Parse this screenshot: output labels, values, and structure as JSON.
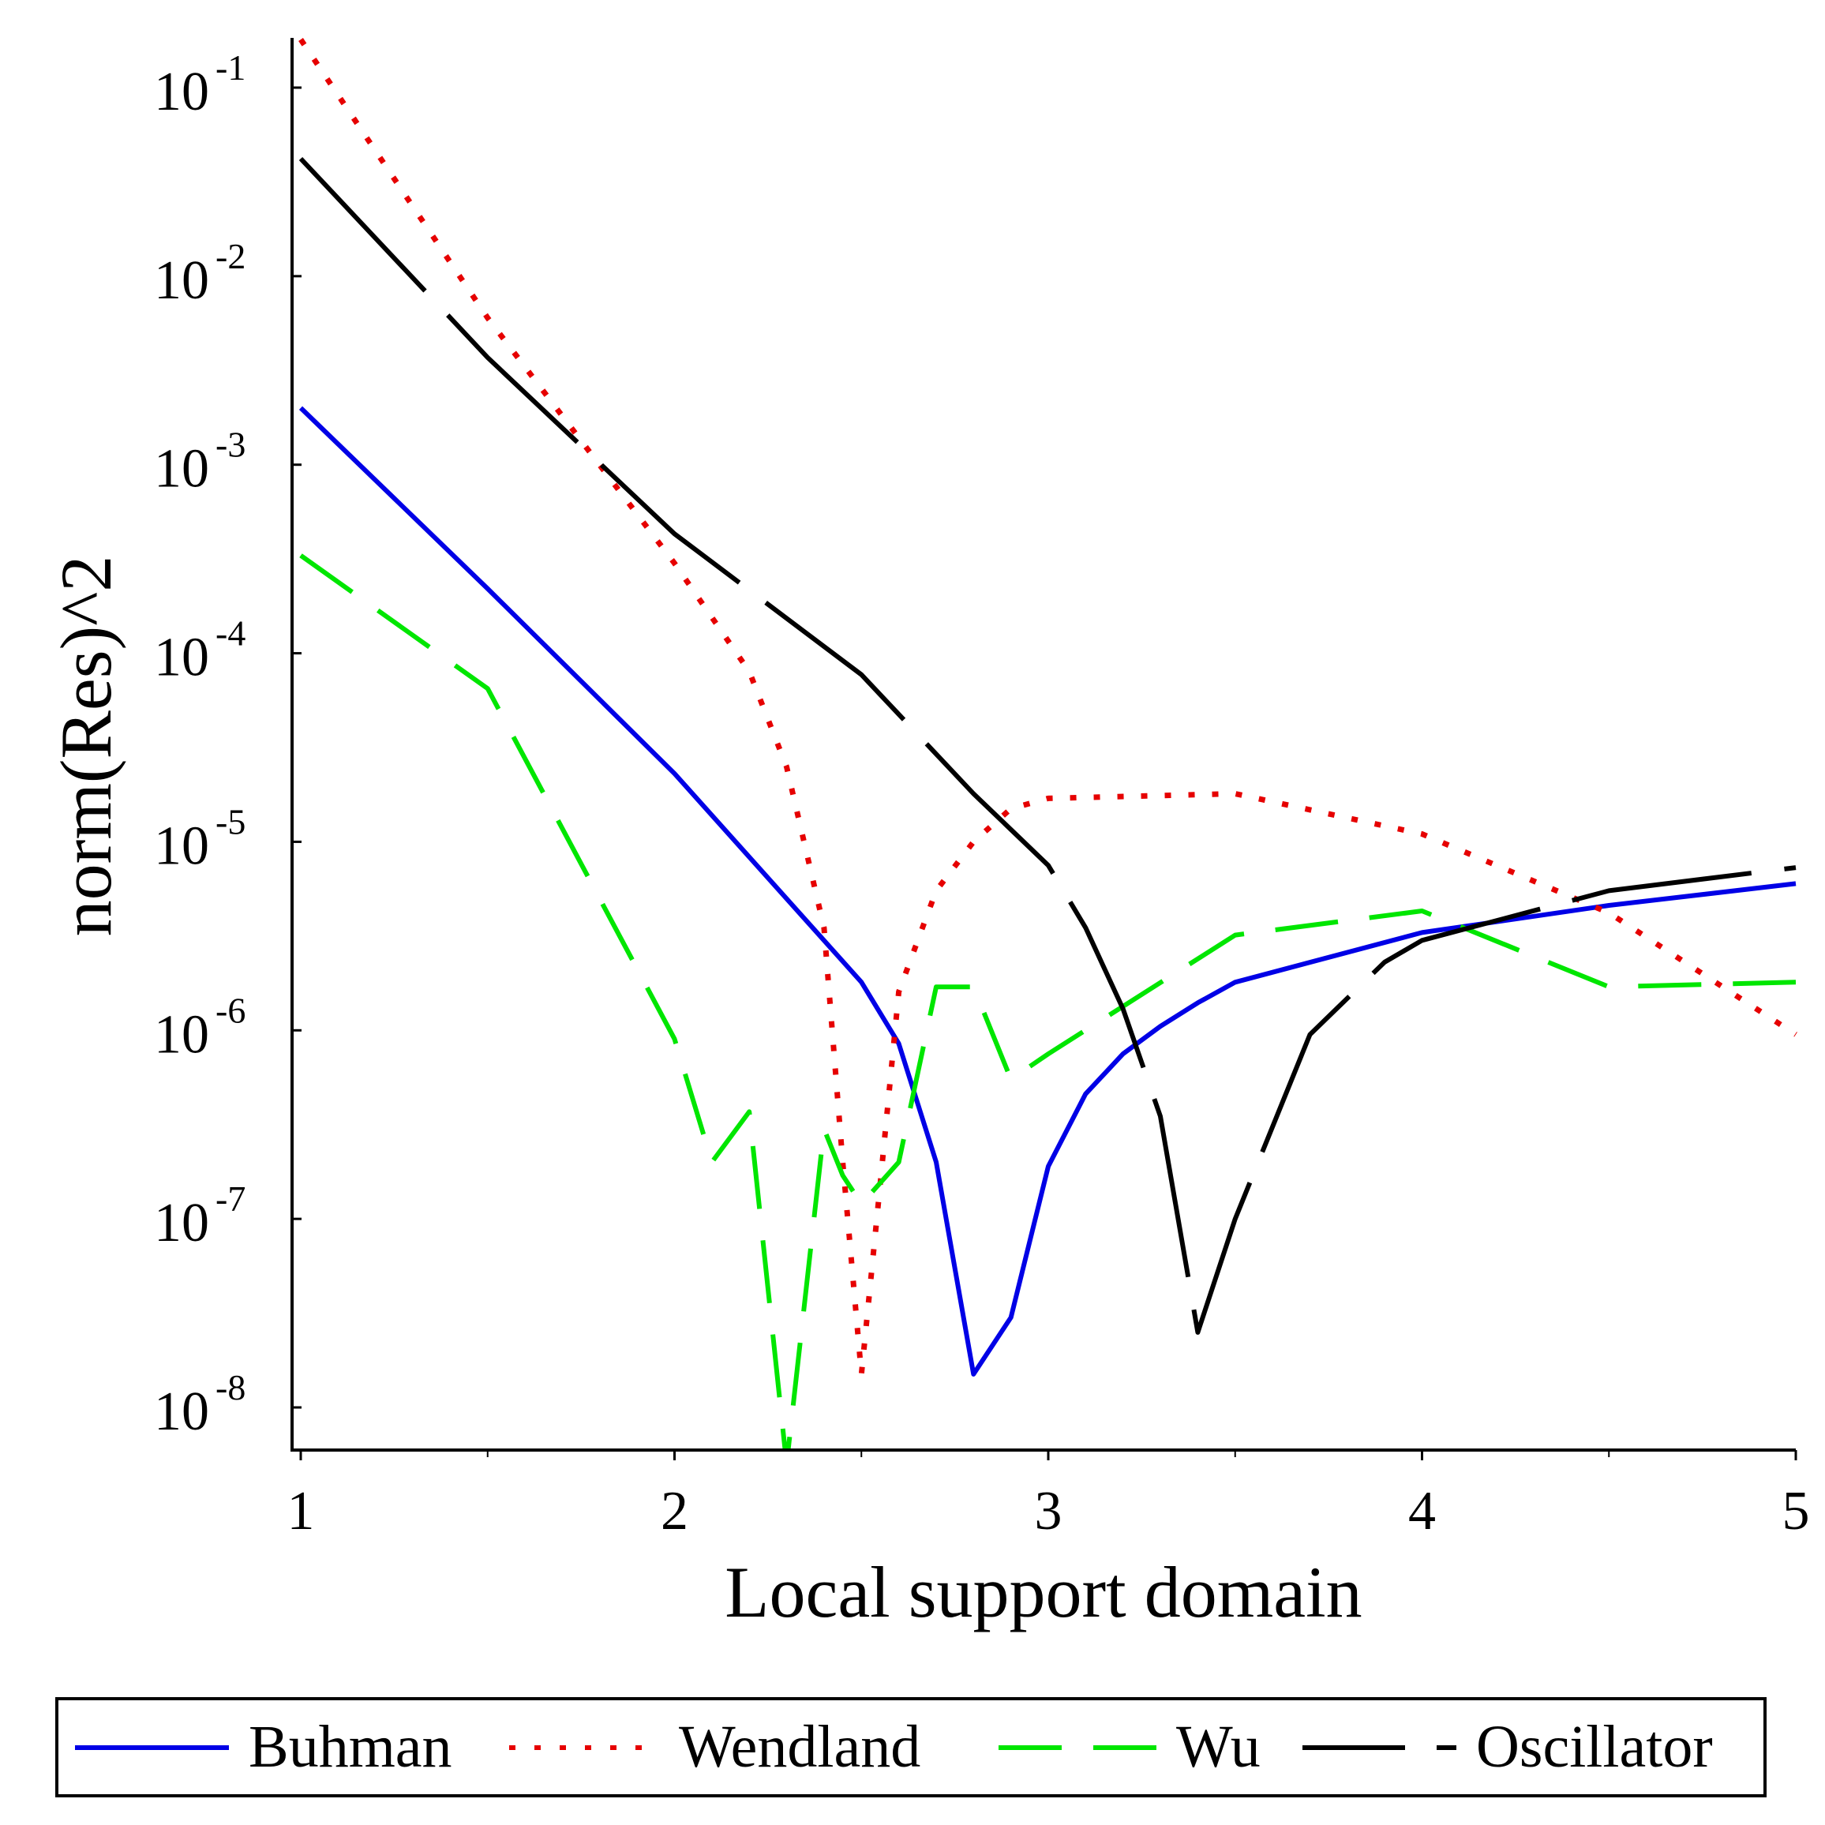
{
  "chart_data": {
    "type": "line",
    "title": "",
    "xlabel": "Local support domain",
    "ylabel": "norm(Res)^2",
    "xlim": [
      1,
      5
    ],
    "ylim": [
      5e-09,
      0.2
    ],
    "y_scale": "log",
    "grid": false,
    "legend_position": "bottom",
    "x_ticks": [
      {
        "value": 1,
        "label": "1"
      },
      {
        "value": 2,
        "label": "2"
      },
      {
        "value": 3,
        "label": "3"
      },
      {
        "value": 4,
        "label": "4"
      },
      {
        "value": 5,
        "label": "5"
      }
    ],
    "y_ticks": [
      {
        "value": 0.1,
        "base": "10",
        "exp": "-1"
      },
      {
        "value": 0.01,
        "base": "10",
        "exp": "-2"
      },
      {
        "value": 0.001,
        "base": "10",
        "exp": "-3"
      },
      {
        "value": 0.0001,
        "base": "10",
        "exp": "-4"
      },
      {
        "value": 1e-05,
        "base": "10",
        "exp": "-5"
      },
      {
        "value": 1e-06,
        "base": "10",
        "exp": "-6"
      },
      {
        "value": 1e-07,
        "base": "10",
        "exp": "-7"
      },
      {
        "value": 1e-08,
        "base": "10",
        "exp": "-8"
      }
    ],
    "series": [
      {
        "name": "Buhman",
        "color": "#0000e6",
        "style": "solid",
        "x": [
          1,
          1.5,
          2,
          2.5,
          2.6,
          2.7,
          2.8,
          2.9,
          3,
          3.1,
          3.2,
          3.3,
          3.4,
          3.5,
          4,
          4.5,
          5
        ],
        "y": [
          0.002,
          0.00022,
          2.3e-05,
          1.8e-06,
          8.5e-07,
          2e-07,
          1.5e-08,
          3e-08,
          1.9e-07,
          4.6e-07,
          7.5e-07,
          1.05e-06,
          1.4e-06,
          1.8e-06,
          3.3e-06,
          4.6e-06,
          6e-06
        ]
      },
      {
        "name": "Wendland",
        "color": "#e60000",
        "style": "dotted",
        "x": [
          1,
          1.5,
          2,
          2.2,
          2.3,
          2.4,
          2.45,
          2.5,
          2.55,
          2.6,
          2.7,
          2.8,
          2.9,
          3,
          3.5,
          4,
          4.5,
          5
        ],
        "y": [
          0.18,
          0.006,
          0.0003,
          8e-05,
          2.5e-05,
          3.5e-06,
          2e-07,
          1.5e-08,
          1.5e-07,
          1.6e-06,
          5.5e-06,
          1e-05,
          1.5e-05,
          1.7e-05,
          1.8e-05,
          1.1e-05,
          4.2e-06,
          9.5e-07
        ]
      },
      {
        "name": "Wu",
        "color": "#00e600",
        "style": "dashed",
        "x": [
          1,
          1.5,
          2,
          2.1,
          2.2,
          2.3,
          2.4,
          2.45,
          2.5,
          2.6,
          2.7,
          2.8,
          2.9,
          3,
          3.5,
          4,
          4.5,
          5
        ],
        "y": [
          0.00033,
          6.5e-05,
          9e-07,
          2e-07,
          3.7e-07,
          5e-09,
          3e-07,
          1.7e-07,
          1.2e-07,
          2e-07,
          1.7e-06,
          1.7e-06,
          5.5e-07,
          7.5e-07,
          3.2e-06,
          4.3e-06,
          1.7e-06,
          1.8e-06
        ]
      },
      {
        "name": "Oscillator",
        "color": "#000000",
        "style": "longdash",
        "x": [
          1,
          1.5,
          2,
          2.5,
          2.8,
          3,
          3.1,
          3.2,
          3.3,
          3.4,
          3.5,
          3.7,
          3.9,
          4,
          4.5,
          5
        ],
        "y": [
          0.042,
          0.0037,
          0.00043,
          7.7e-05,
          1.8e-05,
          7.5e-06,
          3.5e-06,
          1.3e-06,
          3.5e-07,
          2.5e-08,
          1e-07,
          9.5e-07,
          2.3e-06,
          3e-06,
          5.5e-06,
          7.3e-06
        ]
      }
    ]
  }
}
